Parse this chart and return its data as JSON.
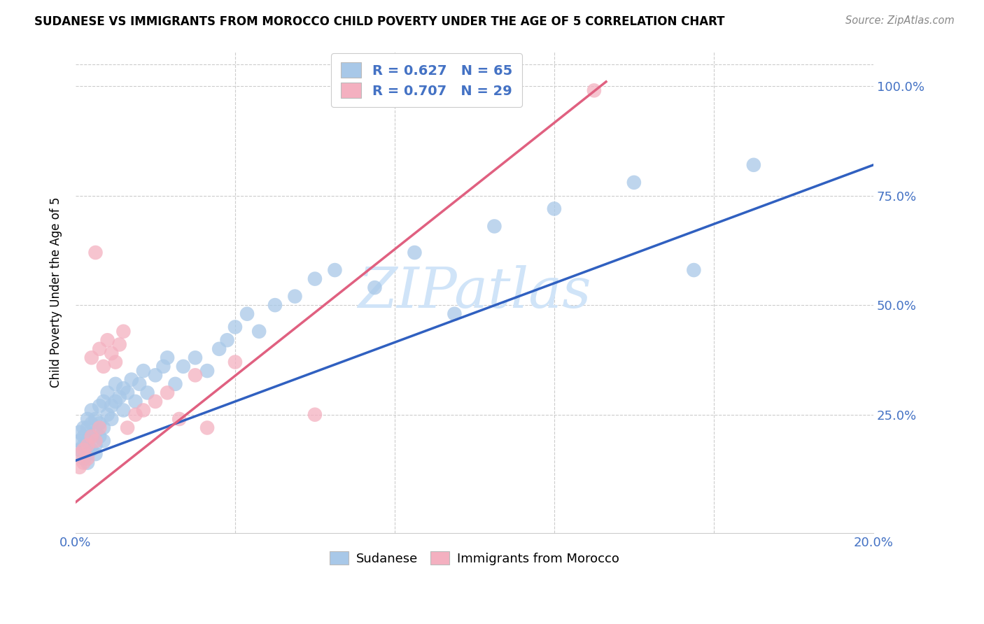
{
  "title": "SUDANESE VS IMMIGRANTS FROM MOROCCO CHILD POVERTY UNDER THE AGE OF 5 CORRELATION CHART",
  "source": "Source: ZipAtlas.com",
  "ylabel": "Child Poverty Under the Age of 5",
  "xlim": [
    0.0,
    0.2
  ],
  "ylim": [
    -0.02,
    1.08
  ],
  "ytick_positions": [
    0.0,
    0.25,
    0.5,
    0.75,
    1.0
  ],
  "ytick_labels": [
    "",
    "25.0%",
    "50.0%",
    "75.0%",
    "100.0%"
  ],
  "sudanese_R": 0.627,
  "sudanese_N": 65,
  "morocco_R": 0.707,
  "morocco_N": 29,
  "sudanese_color": "#a8c8e8",
  "morocco_color": "#f4b0c0",
  "sudanese_line_color": "#3060c0",
  "morocco_line_color": "#e06080",
  "legend_text_color": "#4472c4",
  "watermark": "ZIPatlas",
  "watermark_color": "#d0e4f8",
  "sudanese_x": [
    0.001,
    0.001,
    0.001,
    0.002,
    0.002,
    0.002,
    0.002,
    0.003,
    0.003,
    0.003,
    0.003,
    0.003,
    0.004,
    0.004,
    0.004,
    0.004,
    0.005,
    0.005,
    0.005,
    0.005,
    0.006,
    0.006,
    0.006,
    0.007,
    0.007,
    0.007,
    0.008,
    0.008,
    0.009,
    0.009,
    0.01,
    0.01,
    0.011,
    0.012,
    0.012,
    0.013,
    0.014,
    0.015,
    0.016,
    0.017,
    0.018,
    0.02,
    0.022,
    0.023,
    0.025,
    0.027,
    0.03,
    0.033,
    0.036,
    0.038,
    0.04,
    0.043,
    0.046,
    0.05,
    0.055,
    0.06,
    0.065,
    0.075,
    0.085,
    0.095,
    0.105,
    0.12,
    0.14,
    0.155,
    0.17
  ],
  "sudanese_y": [
    0.17,
    0.19,
    0.21,
    0.15,
    0.18,
    0.2,
    0.22,
    0.16,
    0.19,
    0.22,
    0.24,
    0.14,
    0.17,
    0.2,
    0.23,
    0.26,
    0.18,
    0.21,
    0.24,
    0.16,
    0.2,
    0.23,
    0.27,
    0.19,
    0.22,
    0.28,
    0.25,
    0.3,
    0.27,
    0.24,
    0.28,
    0.32,
    0.29,
    0.26,
    0.31,
    0.3,
    0.33,
    0.28,
    0.32,
    0.35,
    0.3,
    0.34,
    0.36,
    0.38,
    0.32,
    0.36,
    0.38,
    0.35,
    0.4,
    0.42,
    0.45,
    0.48,
    0.44,
    0.5,
    0.52,
    0.56,
    0.58,
    0.54,
    0.62,
    0.48,
    0.68,
    0.72,
    0.78,
    0.58,
    0.82
  ],
  "morocco_x": [
    0.001,
    0.001,
    0.002,
    0.002,
    0.003,
    0.003,
    0.004,
    0.004,
    0.005,
    0.005,
    0.006,
    0.006,
    0.007,
    0.008,
    0.009,
    0.01,
    0.011,
    0.012,
    0.013,
    0.015,
    0.017,
    0.02,
    0.023,
    0.026,
    0.03,
    0.033,
    0.04,
    0.06,
    0.13
  ],
  "morocco_y": [
    0.13,
    0.16,
    0.14,
    0.17,
    0.15,
    0.18,
    0.2,
    0.38,
    0.62,
    0.19,
    0.22,
    0.4,
    0.36,
    0.42,
    0.39,
    0.37,
    0.41,
    0.44,
    0.22,
    0.25,
    0.26,
    0.28,
    0.3,
    0.24,
    0.34,
    0.22,
    0.37,
    0.25,
    0.99
  ],
  "blue_line_x0": 0.0,
  "blue_line_y0": 0.145,
  "blue_line_x1": 0.2,
  "blue_line_y1": 0.82,
  "pink_line_x0": 0.0,
  "pink_line_y0": 0.05,
  "pink_line_x1": 0.133,
  "pink_line_y1": 1.01
}
